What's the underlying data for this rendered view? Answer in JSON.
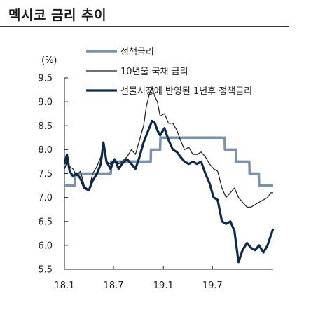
{
  "chart_data": {
    "type": "line",
    "title": "멕시코 금리 추이",
    "ylabel": "(%)",
    "ylim": [
      5.5,
      9.5
    ],
    "yticks": [
      "9.5",
      "9.0",
      "8.5",
      "8.0",
      "7.5",
      "7.0",
      "6.5",
      "6.0",
      "5.5"
    ],
    "xticks": [
      "18.1",
      "18.7",
      "19.1",
      "19.7"
    ],
    "grid": false,
    "legend_position": "top",
    "series": [
      {
        "name": "정책금리",
        "color": "#7a92ad",
        "style": "step",
        "points": [
          [
            "2018-01-01",
            7.25
          ],
          [
            "2018-02-08",
            7.25
          ],
          [
            "2018-02-09",
            7.5
          ],
          [
            "2018-06-21",
            7.5
          ],
          [
            "2018-06-22",
            7.75
          ],
          [
            "2018-11-15",
            7.75
          ],
          [
            "2018-11-16",
            8.0
          ],
          [
            "2018-12-20",
            8.0
          ],
          [
            "2018-12-21",
            8.25
          ],
          [
            "2019-08-15",
            8.25
          ],
          [
            "2019-08-16",
            8.0
          ],
          [
            "2019-09-26",
            8.0
          ],
          [
            "2019-09-27",
            7.75
          ],
          [
            "2019-11-14",
            7.75
          ],
          [
            "2019-11-15",
            7.5
          ],
          [
            "2019-12-19",
            7.5
          ],
          [
            "2019-12-20",
            7.25
          ],
          [
            "2020-02-10",
            7.25
          ]
        ]
      },
      {
        "name": "10년물 국채 금리",
        "color": "#1a1a1a",
        "style": "line",
        "points": [
          [
            "2018-01-02",
            7.6
          ],
          [
            "2018-01-10",
            7.75
          ],
          [
            "2018-01-20",
            7.65
          ],
          [
            "2018-02-01",
            7.6
          ],
          [
            "2018-02-15",
            7.45
          ],
          [
            "2018-03-01",
            7.55
          ],
          [
            "2018-03-15",
            7.25
          ],
          [
            "2018-04-01",
            7.15
          ],
          [
            "2018-04-15",
            7.5
          ],
          [
            "2018-05-01",
            7.65
          ],
          [
            "2018-05-15",
            7.85
          ],
          [
            "2018-05-25",
            8.05
          ],
          [
            "2018-06-05",
            7.75
          ],
          [
            "2018-06-20",
            7.7
          ],
          [
            "2018-07-05",
            7.8
          ],
          [
            "2018-07-20",
            7.7
          ],
          [
            "2018-08-01",
            7.75
          ],
          [
            "2018-08-20",
            7.85
          ],
          [
            "2018-09-05",
            8.0
          ],
          [
            "2018-09-20",
            7.9
          ],
          [
            "2018-10-05",
            8.2
          ],
          [
            "2018-10-20",
            8.5
          ],
          [
            "2018-10-30",
            8.9
          ],
          [
            "2018-11-10",
            9.15
          ],
          [
            "2018-11-20",
            9.3
          ],
          [
            "2018-12-01",
            9.1
          ],
          [
            "2018-12-10",
            9.0
          ],
          [
            "2018-12-20",
            8.7
          ],
          [
            "2019-01-05",
            8.75
          ],
          [
            "2019-01-20",
            8.55
          ],
          [
            "2019-02-05",
            8.55
          ],
          [
            "2019-02-20",
            8.4
          ],
          [
            "2019-03-05",
            8.2
          ],
          [
            "2019-03-20",
            8.0
          ],
          [
            "2019-04-05",
            8.05
          ],
          [
            "2019-04-20",
            7.9
          ],
          [
            "2019-05-05",
            7.9
          ],
          [
            "2019-05-20",
            7.95
          ],
          [
            "2019-06-05",
            7.85
          ],
          [
            "2019-06-20",
            7.7
          ],
          [
            "2019-07-05",
            7.6
          ],
          [
            "2019-07-20",
            7.55
          ],
          [
            "2019-08-05",
            7.2
          ],
          [
            "2019-08-20",
            7.0
          ],
          [
            "2019-09-05",
            7.1
          ],
          [
            "2019-09-20",
            7.2
          ],
          [
            "2019-10-05",
            7.0
          ],
          [
            "2019-10-20",
            6.9
          ],
          [
            "2019-11-05",
            6.8
          ],
          [
            "2019-11-20",
            6.8
          ],
          [
            "2019-12-05",
            6.85
          ],
          [
            "2019-12-20",
            6.9
          ],
          [
            "2020-01-05",
            6.95
          ],
          [
            "2020-01-20",
            7.0
          ],
          [
            "2020-02-01",
            7.1
          ],
          [
            "2020-02-10",
            7.1
          ]
        ]
      },
      {
        "name": "선물시장에 반영된 1년후 정책금리",
        "color": "#0d2a4d",
        "style": "line",
        "points": [
          [
            "2018-01-02",
            7.7
          ],
          [
            "2018-01-10",
            7.9
          ],
          [
            "2018-01-20",
            7.55
          ],
          [
            "2018-02-01",
            7.45
          ],
          [
            "2018-02-15",
            7.5
          ],
          [
            "2018-03-01",
            7.4
          ],
          [
            "2018-03-15",
            7.2
          ],
          [
            "2018-04-01",
            7.15
          ],
          [
            "2018-04-15",
            7.35
          ],
          [
            "2018-05-01",
            7.5
          ],
          [
            "2018-05-15",
            7.7
          ],
          [
            "2018-05-25",
            8.15
          ],
          [
            "2018-06-05",
            7.75
          ],
          [
            "2018-06-20",
            7.6
          ],
          [
            "2018-07-05",
            7.8
          ],
          [
            "2018-07-20",
            7.6
          ],
          [
            "2018-08-01",
            7.7
          ],
          [
            "2018-08-20",
            7.8
          ],
          [
            "2018-09-05",
            7.7
          ],
          [
            "2018-09-20",
            7.6
          ],
          [
            "2018-10-05",
            7.85
          ],
          [
            "2018-10-20",
            8.15
          ],
          [
            "2018-10-30",
            8.3
          ],
          [
            "2018-11-10",
            8.45
          ],
          [
            "2018-11-20",
            8.6
          ],
          [
            "2018-12-01",
            8.55
          ],
          [
            "2018-12-10",
            8.4
          ],
          [
            "2018-12-20",
            8.3
          ],
          [
            "2019-01-05",
            8.45
          ],
          [
            "2019-01-20",
            8.2
          ],
          [
            "2019-02-05",
            8.0
          ],
          [
            "2019-02-20",
            7.95
          ],
          [
            "2019-03-05",
            7.85
          ],
          [
            "2019-03-20",
            7.75
          ],
          [
            "2019-04-05",
            7.7
          ],
          [
            "2019-04-20",
            7.75
          ],
          [
            "2019-05-05",
            7.7
          ],
          [
            "2019-05-20",
            7.75
          ],
          [
            "2019-06-05",
            7.5
          ],
          [
            "2019-06-20",
            7.3
          ],
          [
            "2019-07-05",
            7.0
          ],
          [
            "2019-07-20",
            6.95
          ],
          [
            "2019-08-05",
            6.5
          ],
          [
            "2019-08-20",
            6.45
          ],
          [
            "2019-09-05",
            6.5
          ],
          [
            "2019-09-20",
            6.3
          ],
          [
            "2019-10-05",
            5.65
          ],
          [
            "2019-10-20",
            5.9
          ],
          [
            "2019-11-05",
            6.05
          ],
          [
            "2019-11-20",
            5.95
          ],
          [
            "2019-12-05",
            5.9
          ],
          [
            "2019-12-20",
            6.0
          ],
          [
            "2020-01-05",
            5.85
          ],
          [
            "2020-01-20",
            6.0
          ],
          [
            "2020-02-01",
            6.2
          ],
          [
            "2020-02-10",
            6.35
          ]
        ]
      }
    ]
  }
}
